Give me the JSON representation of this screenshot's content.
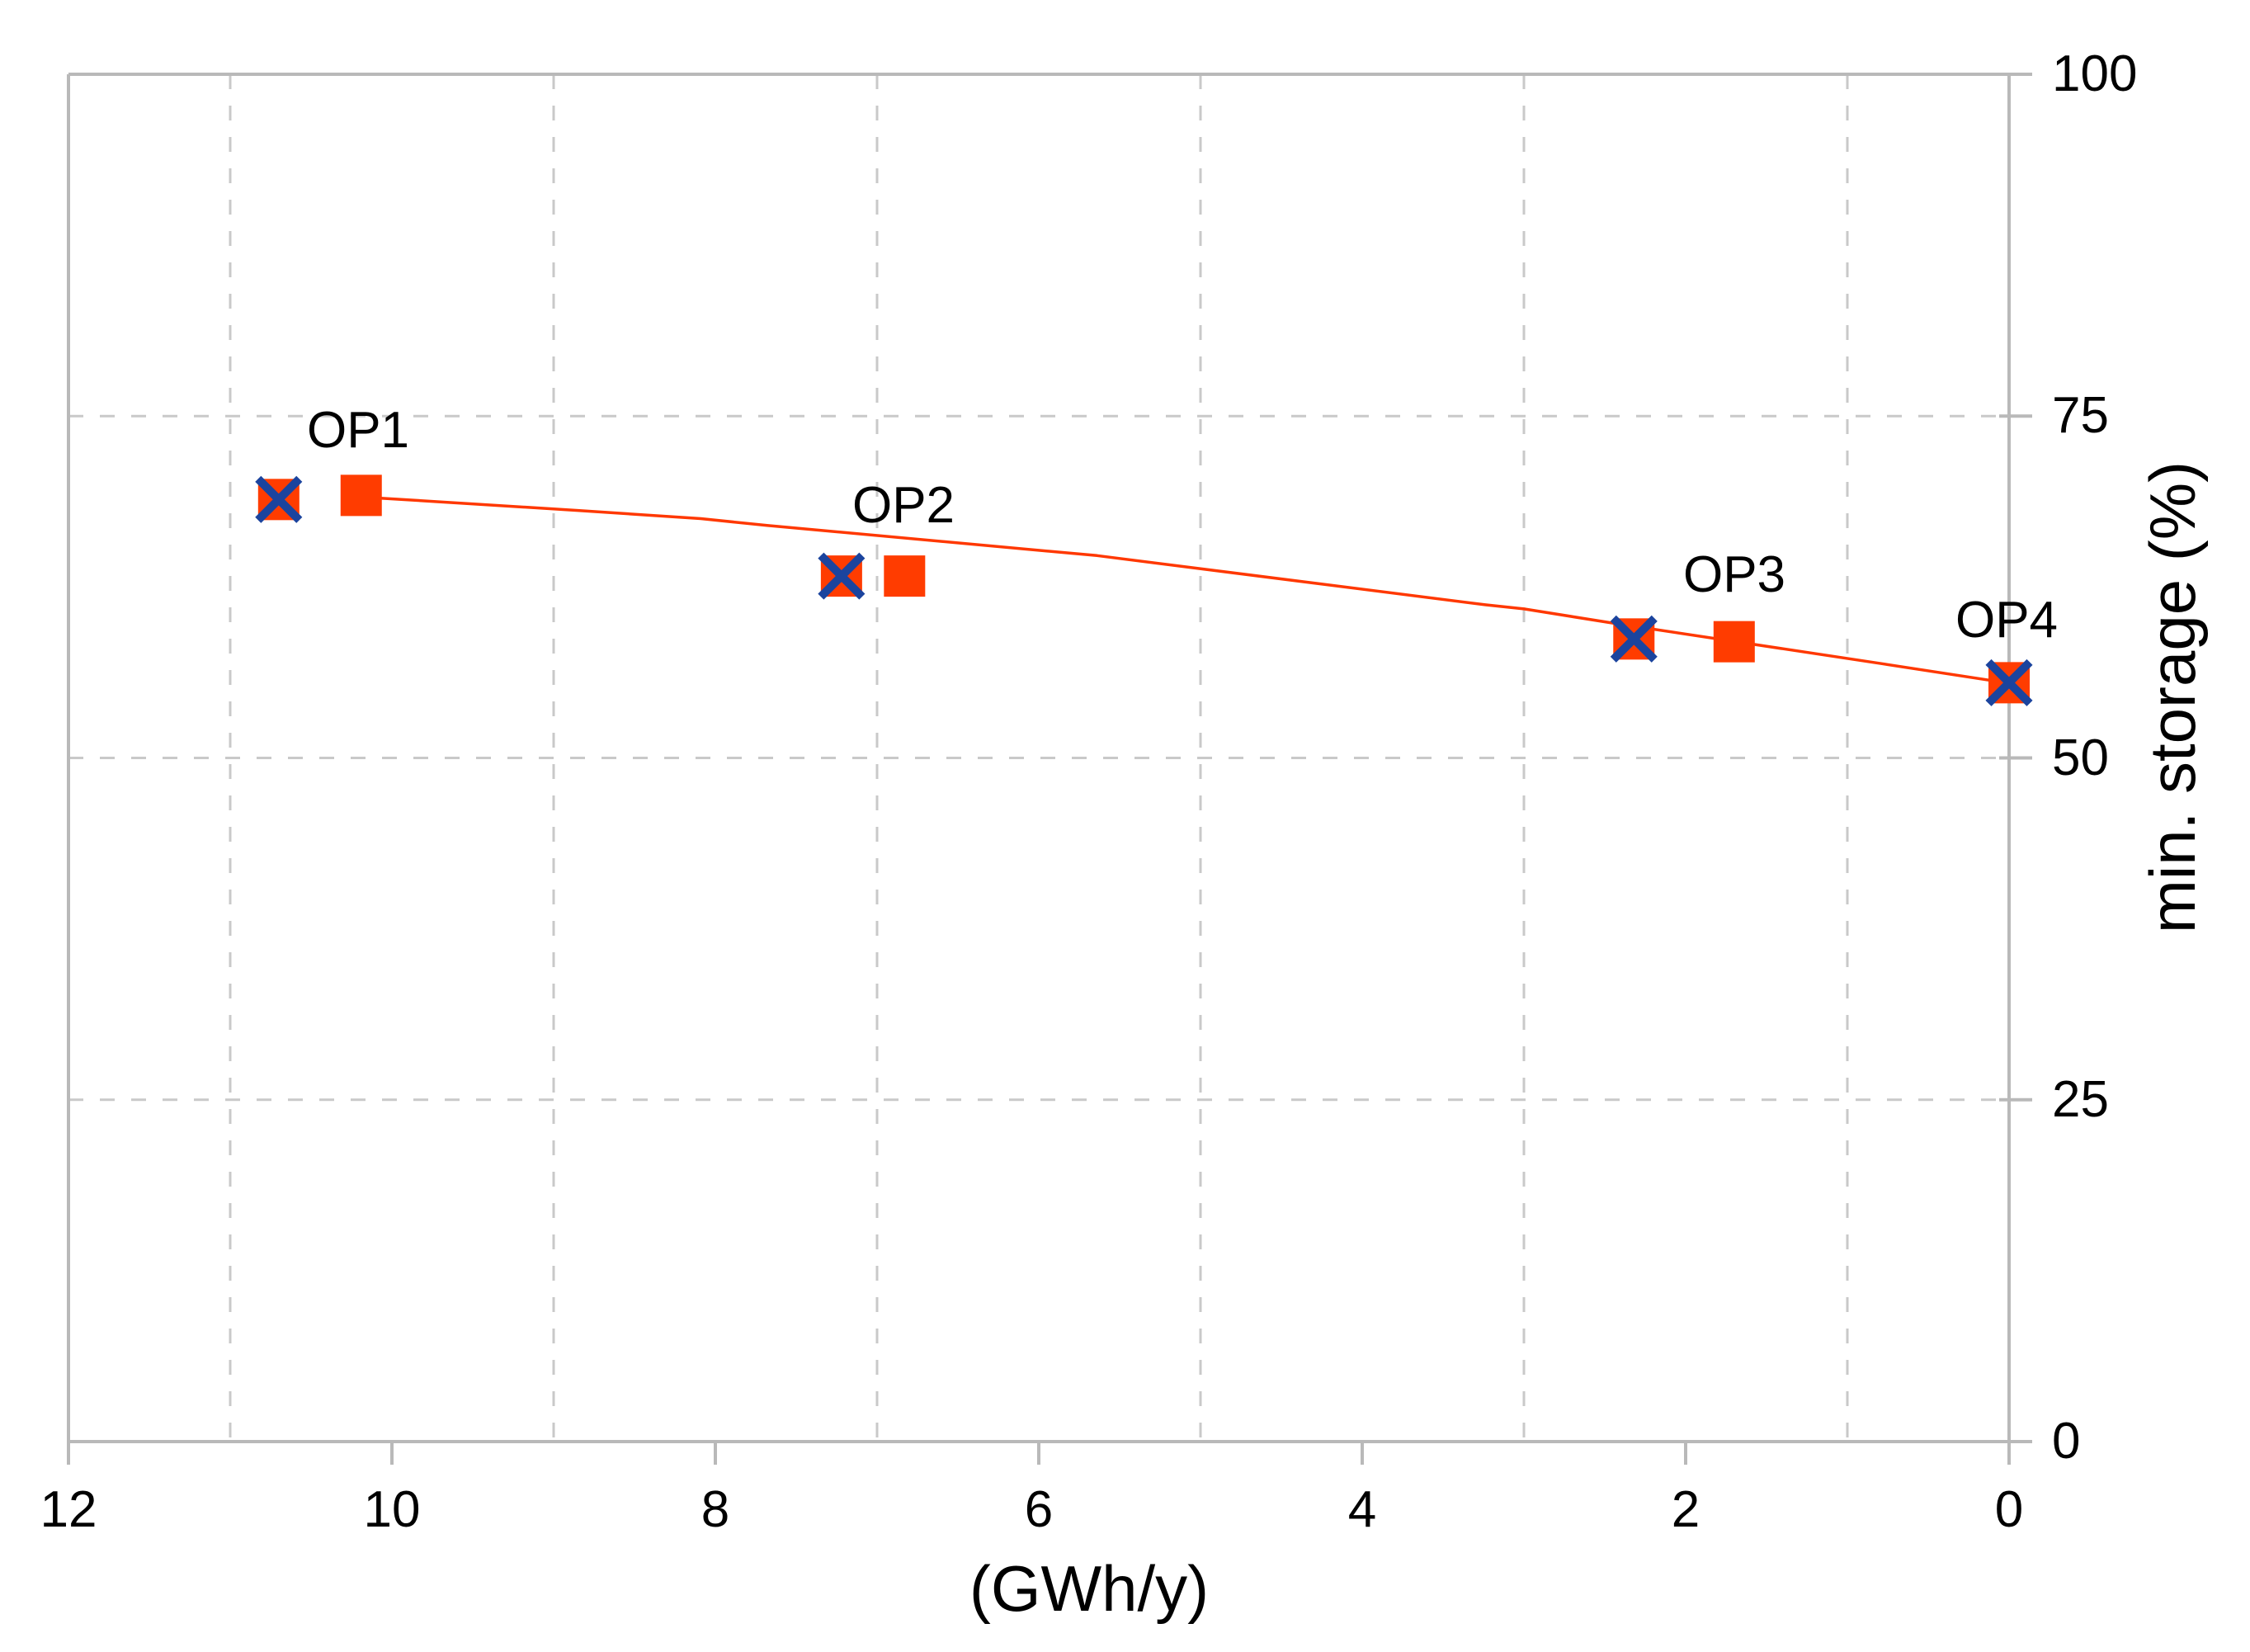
{
  "figure": {
    "background": "#ffffff",
    "text_color": "#000000",
    "gridline_color": "#c9c9c9",
    "axis_line_color": "#b9b9b9"
  },
  "chart_data": {
    "type": "scatter",
    "title": "",
    "x_axis": {
      "title": "(GWh/y)",
      "min": 0,
      "max": 12,
      "reversed": true,
      "tick_values": [
        12,
        10,
        8,
        6,
        4,
        2,
        0
      ],
      "gridline_values": [
        11,
        9,
        7,
        5,
        3,
        1
      ],
      "gridline_style": "dashed"
    },
    "y_axis": {
      "title": "min. storage (%)",
      "min": 0,
      "max": 100,
      "side": "right",
      "tick_values": [
        100,
        75,
        50,
        25,
        0
      ],
      "gridline_values": [
        75,
        50,
        25
      ],
      "gridline_style": "dashed"
    },
    "series": [
      {
        "name": "square-markers",
        "marker": "square",
        "marker_color": "#ff3c00",
        "points": [
          {
            "label": "OP1",
            "x": 10.19,
            "y": 69.2
          },
          {
            "label": "OP2",
            "x": 6.83,
            "y": 63.3
          },
          {
            "label": "OP3",
            "x": 1.7,
            "y": 58.5
          }
        ]
      },
      {
        "name": "crossed-square-markers",
        "marker": "square-with-x",
        "marker_color": "#ff3c00",
        "cross_color": "#1b449e",
        "points": [
          {
            "label": "OP1",
            "x": 10.7,
            "y": 68.9
          },
          {
            "label": "OP2",
            "x": 7.22,
            "y": 63.3
          },
          {
            "label": "OP3",
            "x": 2.32,
            "y": 58.7
          },
          {
            "label": "OP4",
            "x": 0.0,
            "y": 55.5
          }
        ]
      }
    ],
    "trendline": {
      "color": "#ff3800",
      "points_xy": [
        [
          10.07,
          69.0
        ],
        [
          8.85,
          68.1
        ],
        [
          8.09,
          67.5
        ],
        [
          7.68,
          67.0
        ],
        [
          5.64,
          64.8
        ],
        [
          3.24,
          61.2
        ],
        [
          3.0,
          60.9
        ],
        [
          2.47,
          59.9
        ],
        [
          0.79,
          56.9
        ],
        [
          0.02,
          55.5
        ]
      ]
    },
    "point_labels": [
      "OP1",
      "OP2",
      "OP3",
      "OP4"
    ],
    "legend": "none",
    "grid": true
  }
}
